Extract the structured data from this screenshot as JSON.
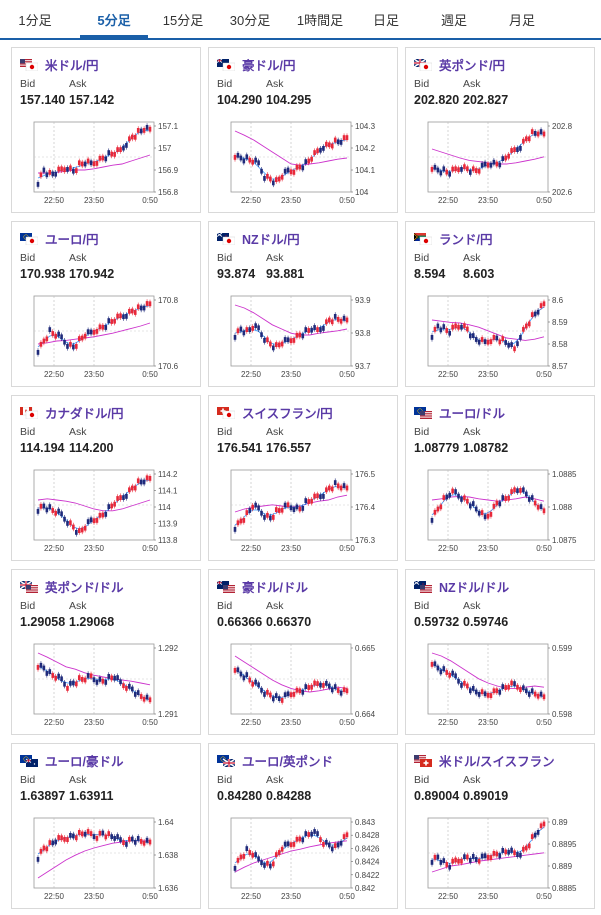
{
  "tabs": [
    {
      "label": "1分足",
      "active": false
    },
    {
      "label": "5分足",
      "active": true
    },
    {
      "label": "15分足",
      "active": false
    },
    {
      "label": "30分足",
      "active": false
    },
    {
      "label": "1時間足",
      "active": false
    },
    {
      "label": "日足",
      "active": false
    },
    {
      "label": "週足",
      "active": false
    },
    {
      "label": "月足",
      "active": false
    }
  ],
  "colors": {
    "up": "#e8283a",
    "down": "#1f2a7a",
    "ma": "#cc33cc",
    "ma_short": "#3399ff",
    "accent": "#1a5fa8",
    "name": "#5a3aa6"
  },
  "cards": [
    {
      "name": "米ドル/円",
      "flag": "us-jp",
      "bid_label": "Bid",
      "ask_label": "Ask",
      "bid": "157.140",
      "ask": "157.142",
      "chart_data": {
        "type": "candlestick",
        "x_ticks": [
          "22:50",
          "23:50",
          "0:50"
        ],
        "y_ticks": [
          "157.1",
          "157",
          "156.9",
          "156.8"
        ],
        "trend": [
          0.1,
          0.3,
          0.22,
          0.25,
          0.3,
          0.35,
          0.28,
          0.38,
          0.42,
          0.4,
          0.45,
          0.5,
          0.55,
          0.58,
          0.62,
          0.75,
          0.85,
          0.92,
          0.98,
          0.96
        ],
        "ma": [
          0.25,
          0.25,
          0.26,
          0.28,
          0.3,
          0.3,
          0.32,
          0.35,
          0.38,
          0.4,
          0.45,
          0.5,
          0.55
        ],
        "ma_short": true
      }
    },
    {
      "name": "豪ドル/円",
      "flag": "au-jp",
      "bid_label": "Bid",
      "ask_label": "Ask",
      "bid": "104.290",
      "ask": "104.295",
      "chart_data": {
        "type": "candlestick",
        "x_ticks": [
          "22:50",
          "23:50",
          "0:50"
        ],
        "y_ticks": [
          "104.3",
          "104.2",
          "104.1",
          "104"
        ],
        "trend": [
          0.55,
          0.5,
          0.48,
          0.45,
          0.4,
          0.2,
          0.15,
          0.1,
          0.2,
          0.28,
          0.3,
          0.35,
          0.4,
          0.5,
          0.6,
          0.7,
          0.72,
          0.76,
          0.78,
          0.82
        ],
        "ma": [
          0.95,
          0.88,
          0.8,
          0.7,
          0.6,
          0.5,
          0.4,
          0.38,
          0.4,
          0.42,
          0.45,
          0.48,
          0.5
        ],
        "ma_short": true
      }
    },
    {
      "name": "英ポンド/円",
      "flag": "gb-jp",
      "bid_label": "Bid",
      "ask_label": "Ask",
      "bid": "202.820",
      "ask": "202.827",
      "chart_data": {
        "type": "candlestick",
        "x_ticks": [
          "22:50",
          "23:50",
          "0:50"
        ],
        "y_ticks": [
          "202.8",
          "202.6"
        ],
        "trend": [
          0.35,
          0.3,
          0.28,
          0.25,
          0.3,
          0.35,
          0.32,
          0.28,
          0.3,
          0.38,
          0.42,
          0.4,
          0.45,
          0.55,
          0.62,
          0.7,
          0.82,
          0.9,
          0.92,
          0.88
        ],
        "ma": [
          0.65,
          0.6,
          0.55,
          0.5,
          0.46,
          0.44,
          0.42,
          0.4,
          0.4,
          0.42,
          0.45,
          0.48,
          0.52
        ],
        "ma_short": true
      }
    },
    {
      "name": "ユーロ/円",
      "flag": "eu-jp",
      "bid_label": "Bid",
      "ask_label": "Ask",
      "bid": "170.938",
      "ask": "170.942",
      "chart_data": {
        "type": "candlestick",
        "x_ticks": [
          "22:50",
          "23:50",
          "0:50"
        ],
        "y_ticks": [
          "170.8",
          "170.6"
        ],
        "trend": [
          0.2,
          0.35,
          0.5,
          0.45,
          0.4,
          0.3,
          0.25,
          0.35,
          0.45,
          0.48,
          0.55,
          0.58,
          0.65,
          0.7,
          0.75,
          0.8,
          0.85,
          0.88,
          0.92,
          0.95
        ],
        "ma": [
          0.3,
          0.32,
          0.35,
          0.36,
          0.38,
          0.4,
          0.42,
          0.45,
          0.48,
          0.52,
          0.56,
          0.6,
          0.65
        ],
        "ma_short": true
      }
    },
    {
      "name": "NZドル/円",
      "flag": "nz-jp",
      "bid_label": "Bid",
      "ask_label": "Ask",
      "bid": "93.874",
      "ask": "93.881",
      "chart_data": {
        "type": "candlestick",
        "x_ticks": [
          "22:50",
          "23:50",
          "0:50"
        ],
        "y_ticks": [
          "93.9",
          "93.8",
          "93.7"
        ],
        "trend": [
          0.45,
          0.55,
          0.5,
          0.58,
          0.55,
          0.4,
          0.3,
          0.25,
          0.32,
          0.35,
          0.4,
          0.45,
          0.5,
          0.55,
          0.52,
          0.6,
          0.7,
          0.72,
          0.7,
          0.68
        ],
        "ma": [
          0.95,
          0.9,
          0.82,
          0.72,
          0.62,
          0.55,
          0.48,
          0.45,
          0.45,
          0.48,
          0.5,
          0.52,
          0.55
        ],
        "ma_short": true
      }
    },
    {
      "name": "ランド/円",
      "flag": "za-jp",
      "bid_label": "Bid",
      "ask_label": "Ask",
      "bid": "8.594",
      "ask": "8.603",
      "chart_data": {
        "type": "candlestick",
        "x_ticks": [
          "22:50",
          "23:50",
          "0:50"
        ],
        "y_ticks": [
          "8.6",
          "8.59",
          "8.58",
          "8.57"
        ],
        "trend": [
          0.45,
          0.6,
          0.55,
          0.5,
          0.58,
          0.62,
          0.55,
          0.4,
          0.35,
          0.32,
          0.38,
          0.4,
          0.35,
          0.3,
          0.2,
          0.45,
          0.6,
          0.75,
          0.85,
          0.95
        ],
        "ma": [
          0.7,
          0.68,
          0.66,
          0.65,
          0.62,
          0.58,
          0.52,
          0.46,
          0.4,
          0.38,
          0.36,
          0.38,
          0.42
        ],
        "ma_short": true
      }
    },
    {
      "name": "カナダドル/円",
      "flag": "ca-jp",
      "bid_label": "Bid",
      "ask_label": "Ask",
      "bid": "114.194",
      "ask": "114.200",
      "chart_data": {
        "type": "candlestick",
        "x_ticks": [
          "22:50",
          "23:50",
          "0:50"
        ],
        "y_ticks": [
          "114.2",
          "114.1",
          "114",
          "113.9",
          "113.8"
        ],
        "trend": [
          0.45,
          0.5,
          0.45,
          0.4,
          0.35,
          0.25,
          0.15,
          0.05,
          0.15,
          0.25,
          0.3,
          0.35,
          0.45,
          0.55,
          0.62,
          0.7,
          0.8,
          0.88,
          0.92,
          0.94
        ],
        "ma": [
          0.6,
          0.62,
          0.6,
          0.58,
          0.55,
          0.5,
          0.45,
          0.42,
          0.42,
          0.45,
          0.5,
          0.55,
          0.6
        ],
        "ma_short": true
      }
    },
    {
      "name": "スイスフラン/円",
      "flag": "ch-jp",
      "bid_label": "Bid",
      "ask_label": "Ask",
      "bid": "176.541",
      "ask": "176.557",
      "chart_data": {
        "type": "candlestick",
        "x_ticks": [
          "22:50",
          "23:50",
          "0:50"
        ],
        "y_ticks": [
          "176.5",
          "176.4",
          "176.3"
        ],
        "trend": [
          0.15,
          0.25,
          0.35,
          0.5,
          0.45,
          0.35,
          0.3,
          0.4,
          0.45,
          0.5,
          0.48,
          0.45,
          0.55,
          0.6,
          0.65,
          0.7,
          0.8,
          0.85,
          0.82,
          0.78
        ],
        "ma": [
          0.4,
          0.45,
          0.48,
          0.5,
          0.52,
          0.5,
          0.48,
          0.5,
          0.55,
          0.58,
          0.6,
          0.65,
          0.68
        ],
        "ma_short": true
      }
    },
    {
      "name": "ユーロ/ドル",
      "flag": "eu-us",
      "bid_label": "Bid",
      "ask_label": "Ask",
      "bid": "1.08779",
      "ask": "1.08782",
      "chart_data": {
        "type": "candlestick",
        "x_ticks": [
          "22:50",
          "23:50",
          "0:50"
        ],
        "y_ticks": [
          "1.0885",
          "1.088",
          "1.0875"
        ],
        "trend": [
          0.3,
          0.45,
          0.6,
          0.7,
          0.72,
          0.65,
          0.58,
          0.5,
          0.4,
          0.3,
          0.4,
          0.55,
          0.6,
          0.65,
          0.75,
          0.8,
          0.7,
          0.6,
          0.5,
          0.4
        ],
        "ma": [
          0.6,
          0.62,
          0.65,
          0.66,
          0.65,
          0.62,
          0.6,
          0.58,
          0.6,
          0.62,
          0.65,
          0.62,
          0.58
        ],
        "ma_short": true
      }
    },
    {
      "name": "英ポンド/ドル",
      "flag": "gb-us",
      "bid_label": "Bid",
      "ask_label": "Ask",
      "bid": "1.29058",
      "ask": "1.29068",
      "chart_data": {
        "type": "candlestick",
        "x_ticks": [
          "22:50",
          "23:50",
          "0:50"
        ],
        "y_ticks": [
          "1.292",
          "1.291"
        ],
        "trend": [
          0.75,
          0.7,
          0.6,
          0.55,
          0.5,
          0.4,
          0.45,
          0.5,
          0.52,
          0.55,
          0.5,
          0.48,
          0.52,
          0.55,
          0.45,
          0.4,
          0.35,
          0.25,
          0.2,
          0.15
        ],
        "ma": [
          0.95,
          0.88,
          0.8,
          0.72,
          0.68,
          0.62,
          0.58,
          0.55,
          0.52,
          0.5,
          0.48,
          0.45,
          0.42
        ],
        "ma_short": true
      }
    },
    {
      "name": "豪ドル/ドル",
      "flag": "au-us",
      "bid_label": "Bid",
      "ask_label": "Ask",
      "bid": "0.66366",
      "ask": "0.66370",
      "chart_data": {
        "type": "candlestick",
        "x_ticks": [
          "22:50",
          "23:50",
          "0:50"
        ],
        "y_ticks": [
          "0.665",
          "0.664"
        ],
        "trend": [
          0.7,
          0.6,
          0.55,
          0.45,
          0.4,
          0.3,
          0.25,
          0.2,
          0.18,
          0.25,
          0.3,
          0.32,
          0.35,
          0.4,
          0.42,
          0.45,
          0.4,
          0.35,
          0.3,
          0.3
        ],
        "ma": [
          0.9,
          0.8,
          0.7,
          0.6,
          0.5,
          0.42,
          0.36,
          0.32,
          0.3,
          0.32,
          0.35,
          0.38,
          0.36
        ],
        "ma_short": true
      }
    },
    {
      "name": "NZドル/ドル",
      "flag": "nz-us",
      "bid_label": "Bid",
      "ask_label": "Ask",
      "bid": "0.59732",
      "ask": "0.59746",
      "chart_data": {
        "type": "candlestick",
        "x_ticks": [
          "22:50",
          "23:50",
          "0:50"
        ],
        "y_ticks": [
          "0.599",
          "0.598"
        ],
        "trend": [
          0.8,
          0.7,
          0.65,
          0.6,
          0.55,
          0.45,
          0.4,
          0.32,
          0.28,
          0.25,
          0.28,
          0.32,
          0.35,
          0.4,
          0.42,
          0.38,
          0.32,
          0.28,
          0.25,
          0.2
        ],
        "ma": [
          0.95,
          0.9,
          0.82,
          0.72,
          0.62,
          0.52,
          0.45,
          0.4,
          0.36,
          0.36,
          0.38,
          0.4,
          0.38
        ],
        "ma_short": true
      }
    },
    {
      "name": "ユーロ/豪ドル",
      "flag": "eu-au",
      "bid_label": "Bid",
      "ask_label": "Ask",
      "bid": "1.63897",
      "ask": "1.63911",
      "chart_data": {
        "type": "candlestick",
        "x_ticks": [
          "22:50",
          "23:50",
          "0:50"
        ],
        "y_ticks": [
          "1.64",
          "1.638",
          "1.636"
        ],
        "trend": [
          0.45,
          0.6,
          0.65,
          0.72,
          0.75,
          0.78,
          0.8,
          0.82,
          0.85,
          0.82,
          0.8,
          0.85,
          0.8,
          0.78,
          0.72,
          0.7,
          0.75,
          0.72,
          0.7,
          0.68
        ],
        "ma": [
          0.1,
          0.2,
          0.3,
          0.4,
          0.48,
          0.55,
          0.6,
          0.64,
          0.68,
          0.7,
          0.72,
          0.72,
          0.72
        ],
        "ma_short": true
      }
    },
    {
      "name": "ユーロ/英ポンド",
      "flag": "eu-gb",
      "bid_label": "Bid",
      "ask_label": "Ask",
      "bid": "0.84280",
      "ask": "0.84288",
      "chart_data": {
        "type": "candlestick",
        "x_ticks": [
          "22:50",
          "23:50",
          "0:50"
        ],
        "y_ticks": [
          "0.843",
          "0.8428",
          "0.8426",
          "0.8424",
          "0.8422",
          "0.842"
        ],
        "trend": [
          0.3,
          0.45,
          0.55,
          0.5,
          0.4,
          0.35,
          0.3,
          0.45,
          0.6,
          0.65,
          0.7,
          0.75,
          0.8,
          0.85,
          0.82,
          0.7,
          0.65,
          0.6,
          0.7,
          0.8
        ],
        "ma": [
          0.2,
          0.28,
          0.35,
          0.4,
          0.45,
          0.5,
          0.55,
          0.58,
          0.62,
          0.65,
          0.68,
          0.7,
          0.72
        ],
        "ma_short": true
      }
    },
    {
      "name": "米ドル/スイスフラン",
      "flag": "us-ch",
      "bid_label": "Bid",
      "ask_label": "Ask",
      "bid": "0.89004",
      "ask": "0.89019",
      "chart_data": {
        "type": "candlestick",
        "x_ticks": [
          "22:50",
          "23:50",
          "0:50"
        ],
        "y_ticks": [
          "0.89",
          "0.8895",
          "0.889",
          "0.8885"
        ],
        "trend": [
          0.4,
          0.45,
          0.35,
          0.3,
          0.38,
          0.42,
          0.45,
          0.42,
          0.4,
          0.45,
          0.48,
          0.5,
          0.52,
          0.55,
          0.5,
          0.52,
          0.6,
          0.75,
          0.88,
          0.98
        ],
        "ma": [
          0.2,
          0.25,
          0.3,
          0.32,
          0.35,
          0.38,
          0.4,
          0.42,
          0.44,
          0.46,
          0.48,
          0.5,
          0.52
        ],
        "ma_short": true
      }
    }
  ]
}
